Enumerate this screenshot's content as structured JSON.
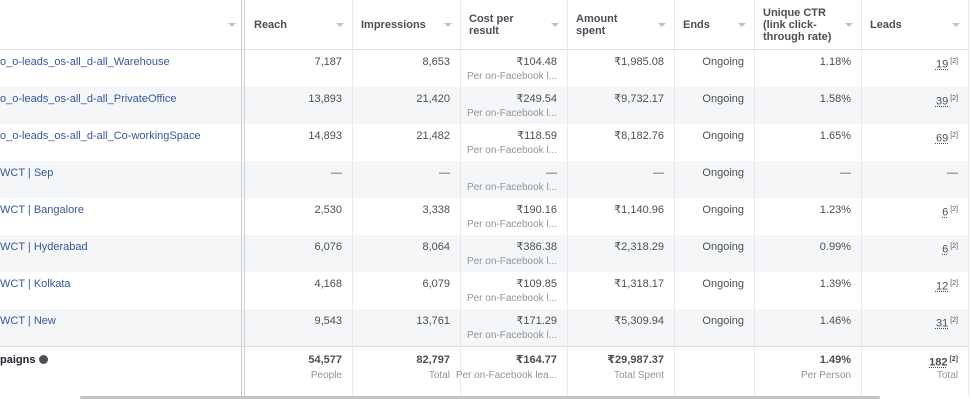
{
  "table": {
    "columns": [
      "Reach",
      "Impressions",
      "Cost per result",
      "Amount spent",
      "Ends",
      "Unique CTR (link click-through rate)",
      "Leads"
    ],
    "rows": [
      {
        "name": "o_o-leads_os-all_d-all_Warehouse",
        "cells": [
          "7,187",
          "8,653",
          {
            "text": "₹104.48",
            "sub": "Per on-Facebook l..."
          },
          "₹1,985.08",
          "Ongoing",
          "1.18%",
          {
            "text": "19",
            "sup": "[2]"
          }
        ]
      },
      {
        "name": "o_o-leads_os-all_d-all_PrivateOffice",
        "cells": [
          "13,893",
          "21,420",
          {
            "text": "₹249.54",
            "sub": "Per on-Facebook l..."
          },
          "₹9,732.17",
          "Ongoing",
          "1.58%",
          {
            "text": "39",
            "sup": "[2]"
          }
        ]
      },
      {
        "name": "o_o-leads_os-all_d-all_Co-workingSpace",
        "cells": [
          "14,893",
          "21,482",
          {
            "text": "₹118.59",
            "sub": "Per on-Facebook l..."
          },
          "₹8,182.76",
          "Ongoing",
          "1.65%",
          {
            "text": "69",
            "sup": "[2]"
          }
        ]
      },
      {
        "name": "WCT | Sep",
        "cells": [
          "—",
          "—",
          {
            "text": "—",
            "sub": "Per on-Facebook l..."
          },
          "—",
          "Ongoing",
          "—",
          {
            "text": "—"
          }
        ]
      },
      {
        "name": "WCT | Bangalore",
        "cells": [
          "2,530",
          "3,338",
          {
            "text": "₹190.16",
            "sub": "Per on-Facebook l..."
          },
          "₹1,140.96",
          "Ongoing",
          "1.23%",
          {
            "text": "6",
            "sup": "[2]"
          }
        ]
      },
      {
        "name": "WCT | Hyderabad",
        "cells": [
          "6,076",
          "8,064",
          {
            "text": "₹386.38",
            "sub": "Per on-Facebook l..."
          },
          "₹2,318.29",
          "Ongoing",
          "0.99%",
          {
            "text": "6",
            "sup": "[2]"
          }
        ]
      },
      {
        "name": "WCT | Kolkata",
        "cells": [
          "4,168",
          "6,079",
          {
            "text": "₹109.85",
            "sub": "Per on-Facebook l..."
          },
          "₹1,318.17",
          "Ongoing",
          "1.39%",
          {
            "text": "12",
            "sup": "[2]"
          }
        ]
      },
      {
        "name": "WCT | New",
        "cells": [
          "9,543",
          "13,761",
          {
            "text": "₹171.29",
            "sub": "Per on-Facebook l..."
          },
          "₹5,309.94",
          "Ongoing",
          "1.46%",
          {
            "text": "31",
            "sup": "[2]"
          }
        ]
      }
    ],
    "total": {
      "name": "paigns",
      "cells": [
        {
          "text": "54,577",
          "sub": "People"
        },
        {
          "text": "82,797",
          "sub": "Total"
        },
        {
          "text": "₹164.77",
          "sub": "Per on-Facebook lea..."
        },
        {
          "text": "₹29,987.37",
          "sub": "Total Spent"
        },
        null,
        {
          "text": "1.49%",
          "sub": "Per Person"
        },
        {
          "text": "182",
          "sup": "[2]",
          "sub": "Total"
        }
      ]
    }
  }
}
